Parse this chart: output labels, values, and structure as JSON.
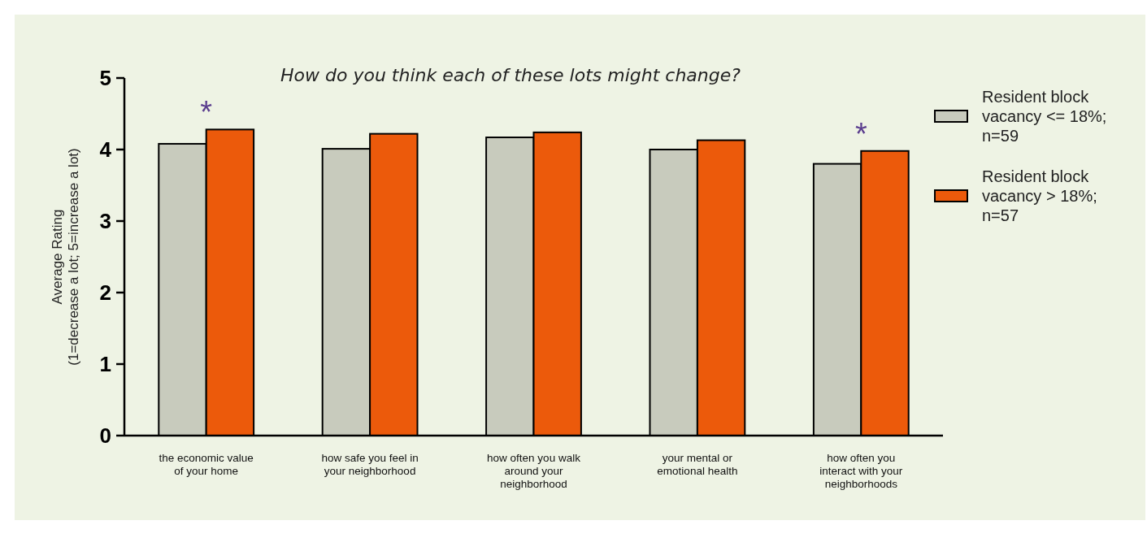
{
  "chart_data": {
    "type": "bar",
    "title": "How do you think each of these lots might change?",
    "ylabel": "Average Rating\n(1=decrease a lot; 5=increase a lot)",
    "categories": [
      "the economic value\nof your home",
      "how safe you feel in\nyour neighborhood",
      "how often you walk\naround your\nneighborhood",
      "your mental or\nemotional health",
      "how often you\ninteract with your\nneighborhoods"
    ],
    "series": [
      {
        "name": "Resident block\nvacancy <= 18%;\nn=59",
        "color": "#c8cbbd",
        "values": [
          4.08,
          4.01,
          4.17,
          4.0,
          3.8
        ]
      },
      {
        "name": "Resident block\nvacancy > 18%;\nn=57",
        "color": "#ec5a0b",
        "values": [
          4.28,
          4.22,
          4.24,
          4.13,
          3.98
        ]
      }
    ],
    "ylim": [
      0,
      5
    ],
    "yticks": [
      0,
      1,
      2,
      3,
      4,
      5
    ],
    "grid": false,
    "legend": "right",
    "annotations": [
      {
        "text": "*",
        "x": "the economic value\nof your home",
        "y": 4.28
      },
      {
        "text": "*",
        "x": "how often you\ninteract with your\nneighborhoods",
        "y": 3.98
      }
    ]
  }
}
